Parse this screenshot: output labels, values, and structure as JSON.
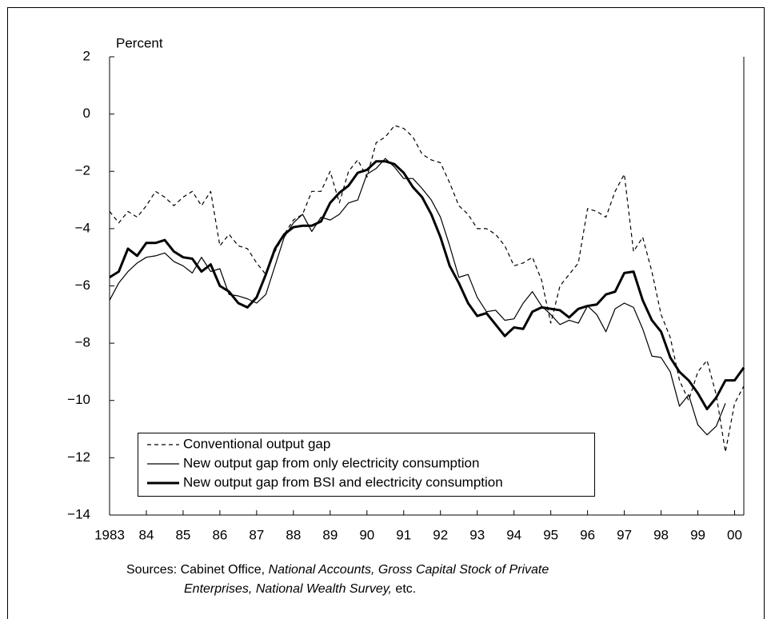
{
  "chart_data": {
    "type": "line",
    "ylabel": "Percent",
    "x": [
      1983,
      1983.25,
      1983.5,
      1983.75,
      1984,
      1984.25,
      1984.5,
      1984.75,
      1985,
      1985.25,
      1985.5,
      1985.75,
      1986,
      1986.25,
      1986.5,
      1986.75,
      1987,
      1987.25,
      1987.5,
      1987.75,
      1988,
      1988.25,
      1988.5,
      1988.75,
      1989,
      1989.25,
      1989.5,
      1989.75,
      1990,
      1990.25,
      1990.5,
      1990.75,
      1991,
      1991.25,
      1991.5,
      1991.75,
      1992,
      1992.25,
      1992.5,
      1992.75,
      1993,
      1993.25,
      1993.5,
      1993.75,
      1994,
      1994.25,
      1994.5,
      1994.75,
      1995,
      1995.25,
      1995.5,
      1995.75,
      1996,
      1996.25,
      1996.5,
      1996.75,
      1997,
      1997.25,
      1997.5,
      1997.75,
      1998,
      1998.25,
      1998.5,
      1998.75,
      1999,
      1999.25,
      1999.5,
      1999.75,
      2000,
      2000.25
    ],
    "series": [
      {
        "name": "Conventional output gap",
        "color": "#000000",
        "line_style": "dashed",
        "line_width": 1.2,
        "values": [
          -3.4,
          -3.8,
          -3.4,
          -3.6,
          -3.2,
          -2.7,
          -2.9,
          -3.2,
          -2.9,
          -2.7,
          -3.2,
          -2.7,
          -4.6,
          -4.2,
          -4.6,
          -4.7,
          -5.2,
          -5.6,
          -4.8,
          -4.2,
          -3.7,
          -3.5,
          -2.7,
          -2.7,
          -2.0,
          -3.1,
          -2.0,
          -1.6,
          -2.2,
          -1.0,
          -0.8,
          -0.4,
          -0.5,
          -0.8,
          -1.4,
          -1.6,
          -1.7,
          -2.4,
          -3.2,
          -3.5,
          -4.0,
          -4.0,
          -4.2,
          -4.6,
          -5.3,
          -5.2,
          -5.0,
          -5.8,
          -7.3,
          -6.0,
          -5.6,
          -5.2,
          -3.3,
          -3.4,
          -3.6,
          -2.7,
          -2.1,
          -4.8,
          -4.3,
          -5.5,
          -7.0,
          -7.8,
          -9.3,
          -10.0,
          -9.0,
          -8.6,
          -9.8,
          -11.8,
          -10.1,
          -9.5
        ]
      },
      {
        "name": "New output gap from only electricity consumption",
        "color": "#000000",
        "line_style": "solid",
        "line_width": 1.2,
        "values": [
          -6.5,
          -5.9,
          -5.5,
          -5.2,
          -5.0,
          -4.95,
          -4.85,
          -5.15,
          -5.3,
          -5.55,
          -5.0,
          -5.5,
          -5.4,
          -6.3,
          -6.35,
          -6.45,
          -6.6,
          -6.3,
          -5.3,
          -4.3,
          -3.8,
          -3.5,
          -4.1,
          -3.6,
          -3.7,
          -3.5,
          -3.1,
          -3.0,
          -2.1,
          -1.9,
          -1.55,
          -1.85,
          -2.25,
          -2.25,
          -2.6,
          -3.0,
          -3.6,
          -4.6,
          -5.7,
          -5.6,
          -6.4,
          -6.9,
          -6.85,
          -7.2,
          -7.15,
          -6.6,
          -6.2,
          -6.7,
          -7.0,
          -7.35,
          -7.2,
          -7.3,
          -6.7,
          -7.0,
          -7.6,
          -6.8,
          -6.6,
          -6.75,
          -7.5,
          -8.45,
          -8.5,
          -9.0,
          -10.2,
          -9.8,
          -10.85,
          -11.2,
          -10.9,
          -10.1,
          null,
          null
        ]
      },
      {
        "name": "New output gap from BSI and electricity consumption",
        "color": "#000000",
        "line_style": "solid",
        "line_width": 3,
        "values": [
          -5.7,
          -5.5,
          -4.7,
          -4.95,
          -4.5,
          -4.5,
          -4.4,
          -4.8,
          -5.0,
          -5.05,
          -5.5,
          -5.25,
          -6.0,
          -6.2,
          -6.6,
          -6.75,
          -6.4,
          -5.6,
          -4.7,
          -4.2,
          -3.95,
          -3.9,
          -3.9,
          -3.75,
          -3.1,
          -2.75,
          -2.5,
          -2.05,
          -1.95,
          -1.65,
          -1.65,
          -1.75,
          -2.05,
          -2.55,
          -2.9,
          -3.5,
          -4.3,
          -5.3,
          -5.9,
          -6.6,
          -7.05,
          -6.95,
          -7.35,
          -7.75,
          -7.45,
          -7.5,
          -6.9,
          -6.75,
          -6.8,
          -6.85,
          -7.1,
          -6.8,
          -6.7,
          -6.65,
          -6.3,
          -6.2,
          -5.55,
          -5.5,
          -6.5,
          -7.2,
          -7.6,
          -8.5,
          -9.0,
          -9.3,
          -9.75,
          -10.3,
          -9.9,
          -9.3,
          -9.3,
          -8.85
        ]
      }
    ],
    "xlim": [
      1983,
      2000.25
    ],
    "xticks": [
      1983,
      {
        "value": 1984,
        "label": "84"
      },
      {
        "value": 1985,
        "label": "85"
      },
      {
        "value": 1986,
        "label": "86"
      },
      {
        "value": 1987,
        "label": "87"
      },
      {
        "value": 1988,
        "label": "88"
      },
      {
        "value": 1989,
        "label": "89"
      },
      {
        "value": 1990,
        "label": "90"
      },
      {
        "value": 1991,
        "label": "91"
      },
      {
        "value": 1992,
        "label": "92"
      },
      {
        "value": 1993,
        "label": "93"
      },
      {
        "value": 1994,
        "label": "94"
      },
      {
        "value": 1995,
        "label": "95"
      },
      {
        "value": 1996,
        "label": "96"
      },
      {
        "value": 1997,
        "label": "97"
      },
      {
        "value": 1998,
        "label": "98"
      },
      {
        "value": 1999,
        "label": "99"
      },
      {
        "value": 2000,
        "label": "00"
      }
    ],
    "ylim": [
      -14,
      2
    ],
    "yticks": [
      {
        "value": 2,
        "label": "2"
      },
      {
        "value": 0,
        "label": "0"
      },
      {
        "value": -2,
        "label": "−2"
      },
      {
        "value": -4,
        "label": "−4"
      },
      {
        "value": -6,
        "label": "−6"
      },
      {
        "value": -8,
        "label": "−8"
      },
      {
        "value": -10,
        "label": "−10"
      },
      {
        "value": -12,
        "label": "−12"
      },
      {
        "value": -14,
        "label": "−14"
      }
    ],
    "grid": false,
    "legend": "lower left",
    "source": [
      "Sources: Cabinet Office,",
      "National Accounts,",
      "Gross Capital Stock of Private",
      "Enterprises, National Wealth Survey,",
      "etc."
    ]
  }
}
